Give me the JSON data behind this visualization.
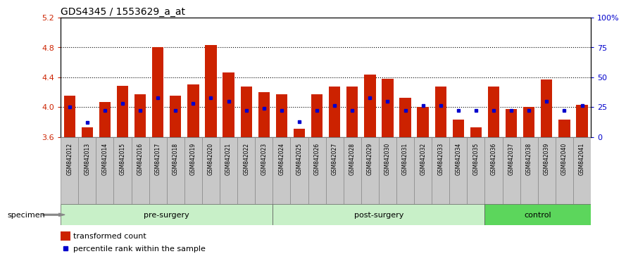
{
  "title": "GDS4345 / 1553629_a_at",
  "samples": [
    "GSM842012",
    "GSM842013",
    "GSM842014",
    "GSM842015",
    "GSM842016",
    "GSM842017",
    "GSM842018",
    "GSM842019",
    "GSM842020",
    "GSM842021",
    "GSM842022",
    "GSM842023",
    "GSM842024",
    "GSM842025",
    "GSM842026",
    "GSM842027",
    "GSM842028",
    "GSM842029",
    "GSM842030",
    "GSM842031",
    "GSM842032",
    "GSM842033",
    "GSM842034",
    "GSM842035",
    "GSM842036",
    "GSM842037",
    "GSM842038",
    "GSM842039",
    "GSM842040",
    "GSM842041"
  ],
  "transformed_count": [
    4.15,
    3.73,
    4.07,
    4.28,
    4.17,
    4.8,
    4.15,
    4.3,
    4.83,
    4.46,
    4.27,
    4.2,
    4.17,
    3.71,
    4.17,
    4.27,
    4.27,
    4.43,
    4.38,
    4.12,
    4.0,
    4.27,
    3.83,
    3.73,
    4.27,
    3.97,
    4.0,
    4.37,
    3.83,
    4.03
  ],
  "percentile_rank": [
    25,
    12,
    22,
    28,
    22,
    33,
    22,
    28,
    33,
    30,
    22,
    24,
    22,
    13,
    22,
    26,
    22,
    33,
    30,
    22,
    26,
    26,
    22,
    22,
    22,
    22,
    22,
    30,
    22,
    26
  ],
  "group_colors": [
    "#c8f0c8",
    "#c8f0c8",
    "#5cd65c"
  ],
  "group_labels": [
    "pre-surgery",
    "post-surgery",
    "control"
  ],
  "group_ranges": [
    [
      0,
      12
    ],
    [
      12,
      24
    ],
    [
      24,
      30
    ]
  ],
  "ylim_left": [
    3.6,
    5.2
  ],
  "ylim_right": [
    0,
    100
  ],
  "yticks_left": [
    3.6,
    4.0,
    4.4,
    4.8,
    5.2
  ],
  "yticks_right": [
    0,
    25,
    50,
    75,
    100
  ],
  "bar_color": "#CC2200",
  "dot_color": "#0000CC",
  "bar_baseline": 3.6,
  "background_color": "#ffffff",
  "tick_label_color_left": "#CC2200",
  "tick_label_color_right": "#0000CC",
  "title_fontsize": 10,
  "axis_fontsize": 8,
  "legend_fontsize": 8,
  "sample_band_color": "#c8c8c8",
  "sample_cell_edge_color": "#888888"
}
